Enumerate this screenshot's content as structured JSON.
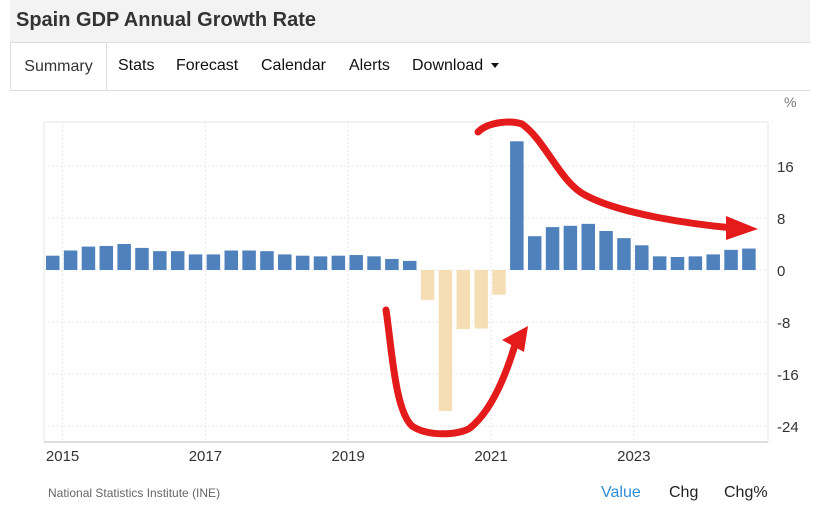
{
  "page": {
    "title": "Spain GDP Annual Growth Rate",
    "tabs": [
      {
        "label": "Summary",
        "active": true
      },
      {
        "label": "Stats"
      },
      {
        "label": "Forecast"
      },
      {
        "label": "Calendar"
      },
      {
        "label": "Alerts"
      },
      {
        "label": "Download"
      }
    ],
    "source": "National Statistics Institute (INE)",
    "view_buttons": [
      "Value",
      "Chg",
      "Chg%"
    ],
    "active_view": "Value",
    "colors": {
      "positive": "#4f81bd",
      "negative": "#f5deb3",
      "accent": "#2e8fd8",
      "annotation": "#e31b1b"
    }
  },
  "chart_data": {
    "type": "bar",
    "unit": "%",
    "y_ticks": [
      "16",
      "8",
      "0",
      "-8",
      "-16",
      "-24"
    ],
    "ylim": [
      -26,
      23
    ],
    "x_ticks": [
      "2015",
      "2017",
      "2019",
      "2021",
      "2023"
    ],
    "categories": [
      "2014Q4",
      "2015Q1",
      "2015Q2",
      "2015Q3",
      "2015Q4",
      "2016Q1",
      "2016Q2",
      "2016Q3",
      "2016Q4",
      "2017Q1",
      "2017Q2",
      "2017Q3",
      "2017Q4",
      "2018Q1",
      "2018Q2",
      "2018Q3",
      "2018Q4",
      "2019Q1",
      "2019Q2",
      "2019Q3",
      "2019Q4",
      "2020Q1",
      "2020Q2",
      "2020Q3",
      "2020Q4",
      "2021Q1",
      "2021Q2",
      "2021Q3",
      "2021Q4",
      "2022Q1",
      "2022Q2",
      "2022Q3",
      "2022Q4",
      "2023Q1",
      "2023Q2",
      "2023Q3",
      "2023Q4",
      "2024Q1",
      "2024Q2",
      "2024Q3"
    ],
    "values": [
      2.2,
      3.0,
      3.6,
      3.7,
      4.0,
      3.4,
      2.9,
      2.9,
      2.4,
      2.4,
      3.0,
      3.0,
      2.9,
      2.4,
      2.2,
      2.1,
      2.2,
      2.3,
      2.1,
      1.7,
      1.4,
      -4.6,
      -21.7,
      -9.1,
      -9.0,
      -3.8,
      19.8,
      5.2,
      6.6,
      6.8,
      7.1,
      6.0,
      4.9,
      3.8,
      2.1,
      2.0,
      2.1,
      2.4,
      3.1,
      3.3
    ],
    "grid": true
  }
}
